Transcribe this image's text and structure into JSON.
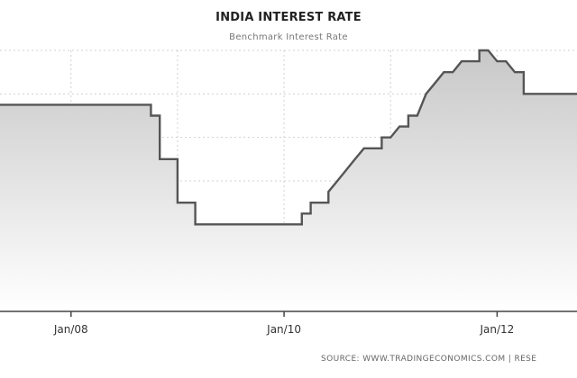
{
  "title": "INDIA INTEREST RATE",
  "subtitle": "Benchmark Interest Rate",
  "source": "SOURCE: WWW.TRADINGECONOMICS.COM  |  RESE",
  "colors": {
    "line": "#555555",
    "fill_top": "#c8c8c8",
    "fill_bottom": "#ffffff",
    "grid": "#d0d0d0",
    "axis": "#444444"
  },
  "chart_data": {
    "type": "area",
    "title": "INDIA INTEREST RATE",
    "subtitle": "Benchmark Interest Rate",
    "xlabel": "",
    "ylabel": "",
    "x_ticks": [
      "Jan/08",
      "Jan/10",
      "Jan/12"
    ],
    "xlim": [
      "2007-05",
      "2012-10"
    ],
    "ylim": [
      3,
      9
    ],
    "grid": true,
    "legend": "none",
    "series": [
      {
        "values": [
          {
            "x": "2007-05",
            "y": 7.75
          },
          {
            "x": "2008-10",
            "y": 7.75
          },
          {
            "x": "2008-10",
            "y": 7.5
          },
          {
            "x": "2008-11",
            "y": 7.5
          },
          {
            "x": "2008-11",
            "y": 6.5
          },
          {
            "x": "2009-01",
            "y": 6.5
          },
          {
            "x": "2009-01",
            "y": 5.5
          },
          {
            "x": "2009-03",
            "y": 5.5
          },
          {
            "x": "2009-03",
            "y": 5.0
          },
          {
            "x": "2010-03",
            "y": 5.0
          },
          {
            "x": "2010-03",
            "y": 5.25
          },
          {
            "x": "2010-04",
            "y": 5.25
          },
          {
            "x": "2010-04",
            "y": 5.5
          },
          {
            "x": "2010-06",
            "y": 5.5
          },
          {
            "x": "2010-06",
            "y": 5.75
          },
          {
            "x": "2010-07",
            "y": 6.0
          },
          {
            "x": "2010-09",
            "y": 6.5
          },
          {
            "x": "2010-10",
            "y": 6.75
          },
          {
            "x": "2010-12",
            "y": 6.75
          },
          {
            "x": "2010-12",
            "y": 7.0
          },
          {
            "x": "2011-01",
            "y": 7.0
          },
          {
            "x": "2011-02",
            "y": 7.25
          },
          {
            "x": "2011-03",
            "y": 7.25
          },
          {
            "x": "2011-03",
            "y": 7.5
          },
          {
            "x": "2011-04",
            "y": 7.5
          },
          {
            "x": "2011-05",
            "y": 8.0
          },
          {
            "x": "2011-06",
            "y": 8.25
          },
          {
            "x": "2011-07",
            "y": 8.5
          },
          {
            "x": "2011-08",
            "y": 8.5
          },
          {
            "x": "2011-09",
            "y": 8.75
          },
          {
            "x": "2011-11",
            "y": 8.75
          },
          {
            "x": "2011-11",
            "y": 9.0
          },
          {
            "x": "2011-12",
            "y": 9.0
          },
          {
            "x": "2012-01",
            "y": 8.75
          },
          {
            "x": "2012-02",
            "y": 8.75
          },
          {
            "x": "2012-03",
            "y": 8.5
          },
          {
            "x": "2012-04",
            "y": 8.5
          },
          {
            "x": "2012-04",
            "y": 8.0
          },
          {
            "x": "2012-10",
            "y": 8.0
          }
        ]
      }
    ]
  }
}
